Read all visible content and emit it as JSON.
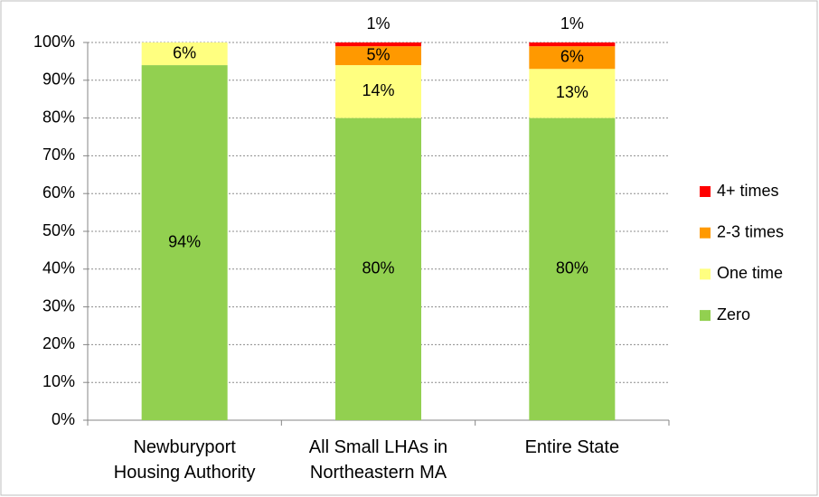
{
  "chart_data": {
    "type": "stacked_bar",
    "categories": [
      "Newburyport Housing Authority",
      "All Small LHAs in Northeastern MA",
      "Entire State"
    ],
    "series": [
      {
        "name": "Zero",
        "color": "#92d050",
        "values": [
          94,
          80,
          80
        ],
        "value_labels": [
          "94%",
          "80%",
          "80%"
        ]
      },
      {
        "name": "One time",
        "color": "#ffff80",
        "values": [
          6,
          14,
          13
        ],
        "value_labels": [
          "6%",
          "14%",
          "13%"
        ]
      },
      {
        "name": "2-3 times",
        "color": "#ff9900",
        "values": [
          0,
          5,
          6
        ],
        "value_labels": [
          null,
          "5%",
          "6%"
        ]
      },
      {
        "name": "4+ times",
        "color": "#ff0000",
        "values": [
          0,
          1,
          1
        ],
        "value_labels": [
          null,
          "1%",
          "1%"
        ]
      }
    ],
    "ylim": [
      0,
      100
    ],
    "yticks": [
      {
        "value": 0,
        "label": "0%"
      },
      {
        "value": 10,
        "label": "10%"
      },
      {
        "value": 20,
        "label": "20%"
      },
      {
        "value": 30,
        "label": "30%"
      },
      {
        "value": 40,
        "label": "40%"
      },
      {
        "value": 50,
        "label": "50%"
      },
      {
        "value": 60,
        "label": "60%"
      },
      {
        "value": 70,
        "label": "70%"
      },
      {
        "value": 80,
        "label": "80%"
      },
      {
        "value": 90,
        "label": "90%"
      },
      {
        "value": 100,
        "label": "100%"
      }
    ],
    "grid": true,
    "legend": "right"
  }
}
